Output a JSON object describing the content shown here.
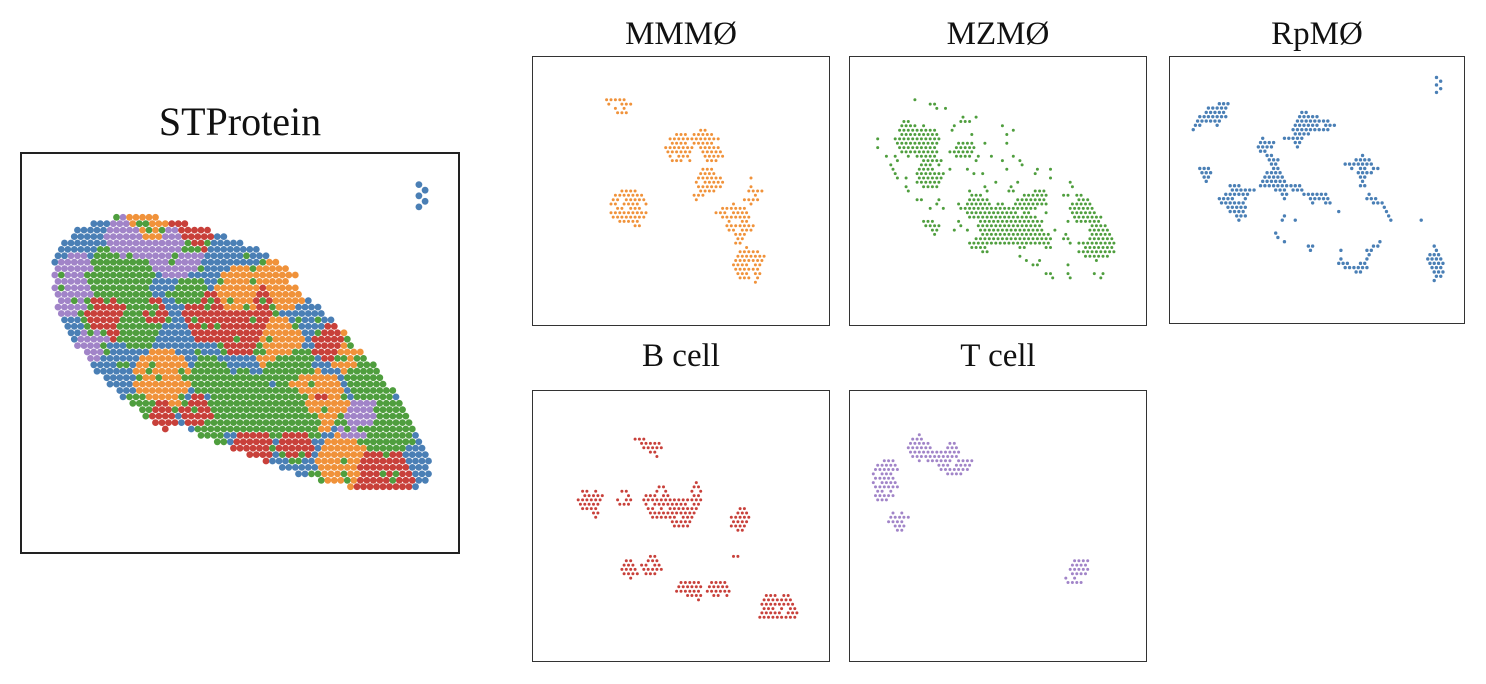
{
  "figure": {
    "main_title": "STProtein",
    "panels": {
      "mmm": "MMMØ",
      "mzm": "MZMØ",
      "rpm": "RpMØ",
      "bcell": "B cell",
      "tcell": "T cell"
    }
  },
  "chart_data": {
    "type": "scatter",
    "description_kind": "spatial clustering of protein spots",
    "categories": [
      "MMMØ",
      "MZMØ",
      "RpMØ",
      "B cell",
      "T cell"
    ],
    "colors": {
      "MMMØ": "#f0923a",
      "MZMØ": "#4f9e3e",
      "RpMØ": "#4a7fb5",
      "B cell": "#c8403a",
      "T cell": "#a184c8"
    },
    "grid": false,
    "axes_visible": false
  }
}
